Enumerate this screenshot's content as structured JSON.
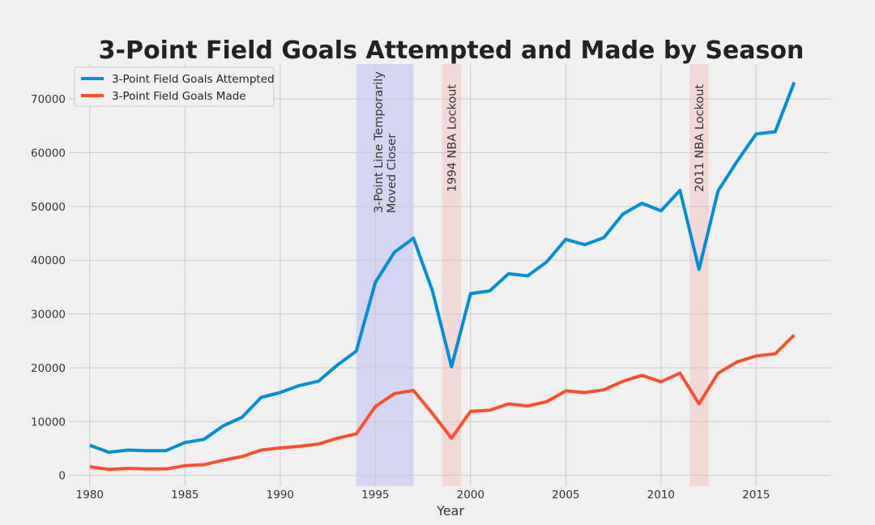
{
  "chart_data": {
    "type": "line",
    "title": "3-Point Field Goals Attempted and Made by Season",
    "xlabel": "Year",
    "ylabel": "",
    "xlim": [
      1978.9,
      2018.9
    ],
    "ylim": [
      -2000,
      76500
    ],
    "x_ticks": [
      1980,
      1985,
      1990,
      1995,
      2000,
      2005,
      2010,
      2015
    ],
    "y_ticks": [
      0,
      10000,
      20000,
      30000,
      40000,
      50000,
      60000,
      70000
    ],
    "grid": true,
    "legend_position": "top-left",
    "x": [
      1980,
      1981,
      1982,
      1983,
      1984,
      1985,
      1986,
      1987,
      1988,
      1989,
      1990,
      1991,
      1992,
      1993,
      1994,
      1995,
      1996,
      1997,
      1998,
      1999,
      2000,
      2001,
      2002,
      2003,
      2004,
      2005,
      2006,
      2007,
      2008,
      2009,
      2010,
      2011,
      2012,
      2013,
      2014,
      2015,
      2016,
      2017
    ],
    "series": [
      {
        "name": "3-Point Field Goals Attempted",
        "color": "#008fd5",
        "values": [
          5600,
          4300,
          4700,
          4600,
          4600,
          6100,
          6700,
          9200,
          10800,
          14500,
          15400,
          16700,
          17500,
          20500,
          23100,
          35900,
          41500,
          44100,
          34300,
          20200,
          33800,
          34300,
          37500,
          37100,
          39700,
          43900,
          42900,
          44200,
          48600,
          50600,
          49200,
          53000,
          38300,
          52900,
          58400,
          63500,
          63900,
          73100
        ]
      },
      {
        "name": "3-Point Field Goals Made",
        "color": "#fc4f30",
        "values": [
          1600,
          1100,
          1300,
          1200,
          1200,
          1800,
          2000,
          2800,
          3500,
          4700,
          5100,
          5400,
          5800,
          6900,
          7700,
          12800,
          15200,
          15800,
          11500,
          6900,
          11900,
          12100,
          13300,
          12900,
          13700,
          15700,
          15400,
          15900,
          17500,
          18600,
          17400,
          19000,
          13300,
          19000,
          21100,
          22200,
          22600,
          26100
        ]
      }
    ],
    "spans": [
      {
        "start": 1994,
        "end": 1997,
        "color": "#6a6aff",
        "label_lines": [
          "3-Point Line Temporarily",
          "Moved Closer"
        ]
      },
      {
        "start": 1998.5,
        "end": 1999.5,
        "color": "#ff7a7a",
        "label_lines": [
          "1994 NBA Lockout"
        ]
      },
      {
        "start": 2011.5,
        "end": 2012.5,
        "color": "#ff7a7a",
        "label_lines": [
          "2011 NBA Lockout"
        ]
      }
    ]
  }
}
